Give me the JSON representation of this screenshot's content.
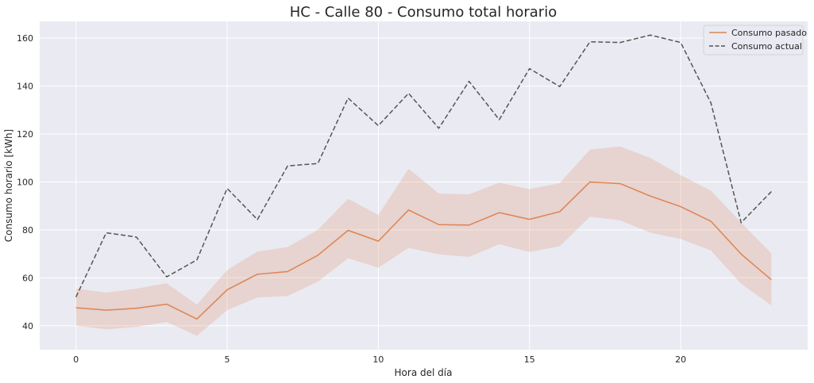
{
  "chart_data": {
    "type": "line",
    "title": "HC - Calle 80 - Consumo total horario",
    "xlabel": "Hora del día",
    "ylabel": "Consumo horario [kWh]",
    "xlim": [
      -1.2,
      24.2
    ],
    "ylim": [
      30,
      167
    ],
    "xticks": [
      0,
      5,
      10,
      15,
      20
    ],
    "yticks": [
      40,
      60,
      80,
      100,
      120,
      140,
      160
    ],
    "x": [
      0,
      1,
      2,
      3,
      4,
      5,
      6,
      7,
      8,
      9,
      10,
      11,
      12,
      13,
      14,
      15,
      16,
      17,
      18,
      19,
      20,
      21,
      22,
      23
    ],
    "grid": true,
    "legend_position": "top-right",
    "series": [
      {
        "name": "Consumo pasado",
        "color": "#dd8452",
        "style": "solid",
        "values": [
          47.5,
          46.5,
          47.3,
          49,
          42.8,
          55,
          61.5,
          62.6,
          69.4,
          79.8,
          75.3,
          88.3,
          82.2,
          82,
          87.2,
          84.4,
          87.6,
          100,
          99.3,
          94.1,
          89.7,
          83.6,
          69.9,
          59.2
        ],
        "band_lower": [
          40,
          38.5,
          39.5,
          41.6,
          35.8,
          46.5,
          51.8,
          52.4,
          58.4,
          68.2,
          64.2,
          72.5,
          69.8,
          68.7,
          74,
          70.8,
          73.2,
          85.5,
          84,
          78.8,
          76.2,
          71.4,
          57.5,
          48.5
        ],
        "band_upper": [
          55.5,
          53.8,
          55.5,
          57.7,
          48.8,
          63.2,
          71,
          72.8,
          80,
          93,
          86.2,
          105.5,
          95.2,
          94.8,
          99.7,
          97,
          99.5,
          113.5,
          114.8,
          110,
          102.8,
          96.4,
          83,
          70.2
        ]
      },
      {
        "name": "Consumo actual",
        "color": "#555555",
        "style": "dashed",
        "values": [
          52,
          78.8,
          77,
          60.4,
          67.5,
          97.3,
          84.3,
          106.7,
          107.7,
          135,
          123.5,
          137,
          122.4,
          142,
          126,
          147.3,
          139.8,
          158.5,
          158.2,
          161.3,
          158.2,
          133,
          83,
          96
        ]
      }
    ]
  }
}
